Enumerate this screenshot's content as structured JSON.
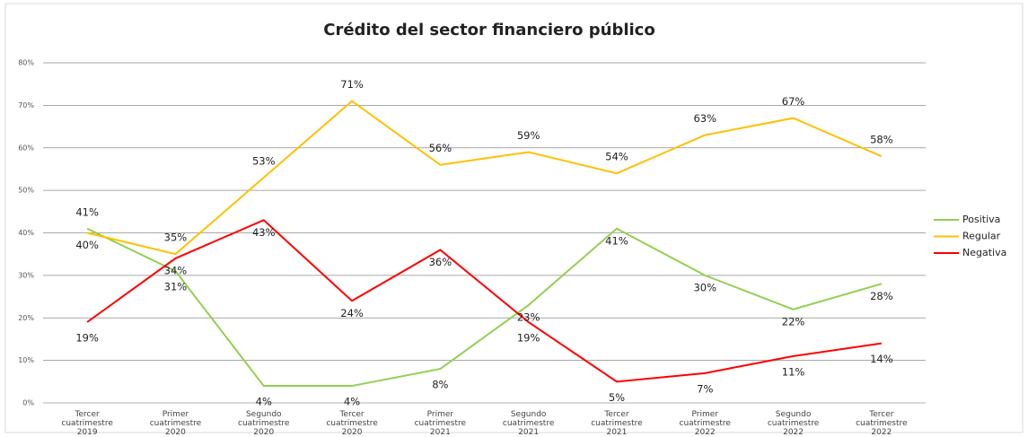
{
  "chart_data": {
    "type": "line",
    "title": "Crédito del sector financiero público",
    "categories": [
      "Tercer cuatrimestre 2019",
      "Primer cuatrimestre 2020",
      "Segundo cuatrimestre 2020",
      "Tercer cuatrimestre 2020",
      "Primer cuatrimestre 2021",
      "Segundo cuatrimestre 2021",
      "Tercer cuatrimestre 2021",
      "Primer cuatrimestre 2022",
      "Segundo cuatrimestre 2022",
      "Tercer cuatrimestre 2022"
    ],
    "series": [
      {
        "name": "Positiva",
        "color": "#92d050",
        "values": [
          41,
          31,
          4,
          4,
          8,
          23,
          41,
          30,
          22,
          28
        ],
        "value_labels": [
          "41%",
          "31%",
          "4%",
          "4%",
          "8%",
          "23%",
          "41%",
          "30%",
          "22%",
          "28%"
        ]
      },
      {
        "name": "Regular",
        "color": "#ffc000",
        "values": [
          40,
          35,
          53,
          71,
          56,
          59,
          54,
          63,
          67,
          58
        ],
        "value_labels": [
          "40%",
          "35%",
          "53%",
          "71%",
          "56%",
          "59%",
          "54%",
          "63%",
          "67%",
          "58%"
        ]
      },
      {
        "name": "Negativa",
        "color": "#ff0000",
        "values": [
          19,
          34,
          43,
          24,
          36,
          19,
          5,
          7,
          11,
          14
        ],
        "value_labels": [
          "19%",
          "34%",
          "43%",
          "24%",
          "36%",
          "19%",
          "5%",
          "7%",
          "11%",
          "14%"
        ]
      }
    ],
    "ylim": [
      0,
      80
    ],
    "yticks": [
      {
        "value": 0,
        "label": "0%"
      },
      {
        "value": 10,
        "label": "10%"
      },
      {
        "value": 20,
        "label": "20%"
      },
      {
        "value": 30,
        "label": "30%"
      },
      {
        "value": 40,
        "label": "40%"
      },
      {
        "value": 50,
        "label": "50%"
      },
      {
        "value": 60,
        "label": "60%"
      },
      {
        "value": 70,
        "label": "70%"
      },
      {
        "value": 80,
        "label": "80%"
      }
    ],
    "grid": true,
    "legend": "right"
  }
}
